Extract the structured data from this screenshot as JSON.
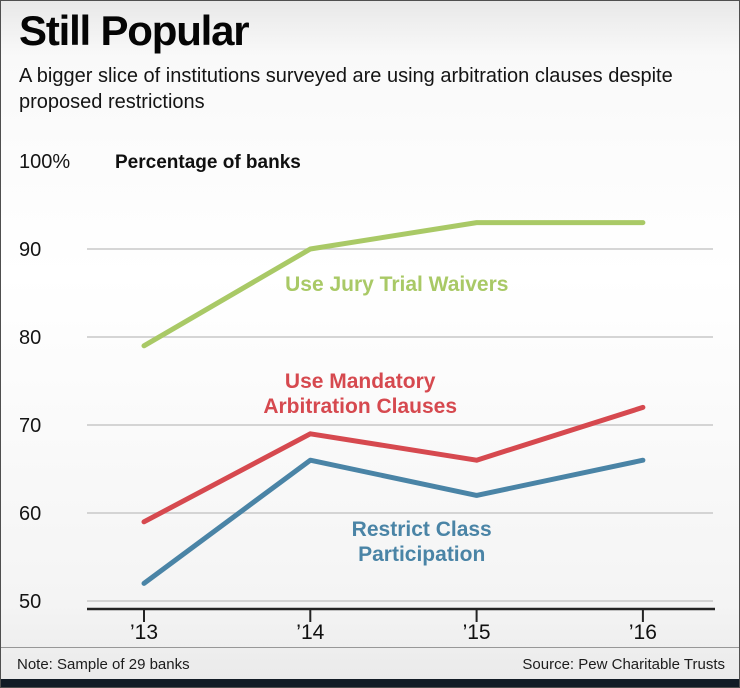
{
  "chart_data": {
    "type": "line",
    "title": "Still Popular",
    "subtitle": "A bigger slice of institutions surveyed are using arbitration clauses despite proposed restrictions",
    "ylabel": "Percentage of banks",
    "xlabel": "",
    "ylim": [
      50,
      100
    ],
    "grid": true,
    "legend": "inline-labels",
    "categories": [
      "’13",
      "’14",
      "’15",
      "’16"
    ],
    "yticks": [
      {
        "value": 100,
        "label": "100%"
      },
      {
        "value": 90,
        "label": "90"
      },
      {
        "value": 80,
        "label": "80"
      },
      {
        "value": 70,
        "label": "70"
      },
      {
        "value": 60,
        "label": "60"
      },
      {
        "value": 50,
        "label": "50"
      }
    ],
    "series": [
      {
        "name": "Use Jury Trial Waivers",
        "color": "#a9c966",
        "values": [
          79,
          90,
          93,
          93
        ],
        "label_lines": [
          "Use Jury Trial Waivers"
        ],
        "label_anchor": {
          "x_index": 1.52,
          "y_value": 85.2
        }
      },
      {
        "name": "Use Mandatory Arbitration Clauses",
        "color": "#d6494f",
        "values": [
          59,
          69,
          66,
          72
        ],
        "label_lines": [
          "Use Mandatory",
          "Arbitration Clauses"
        ],
        "label_anchor": {
          "x_index": 1.3,
          "y_value": 74.2
        }
      },
      {
        "name": "Restrict Class Participation",
        "color": "#4a84a6",
        "values": [
          52,
          66,
          62,
          66
        ],
        "label_lines": [
          "Restrict Class",
          "Participation"
        ],
        "label_anchor": {
          "x_index": 1.67,
          "y_value": 57.4
        }
      }
    ]
  },
  "footer": {
    "note": "Note: Sample of 29 banks",
    "source": "Source: Pew Charitable Trusts"
  }
}
